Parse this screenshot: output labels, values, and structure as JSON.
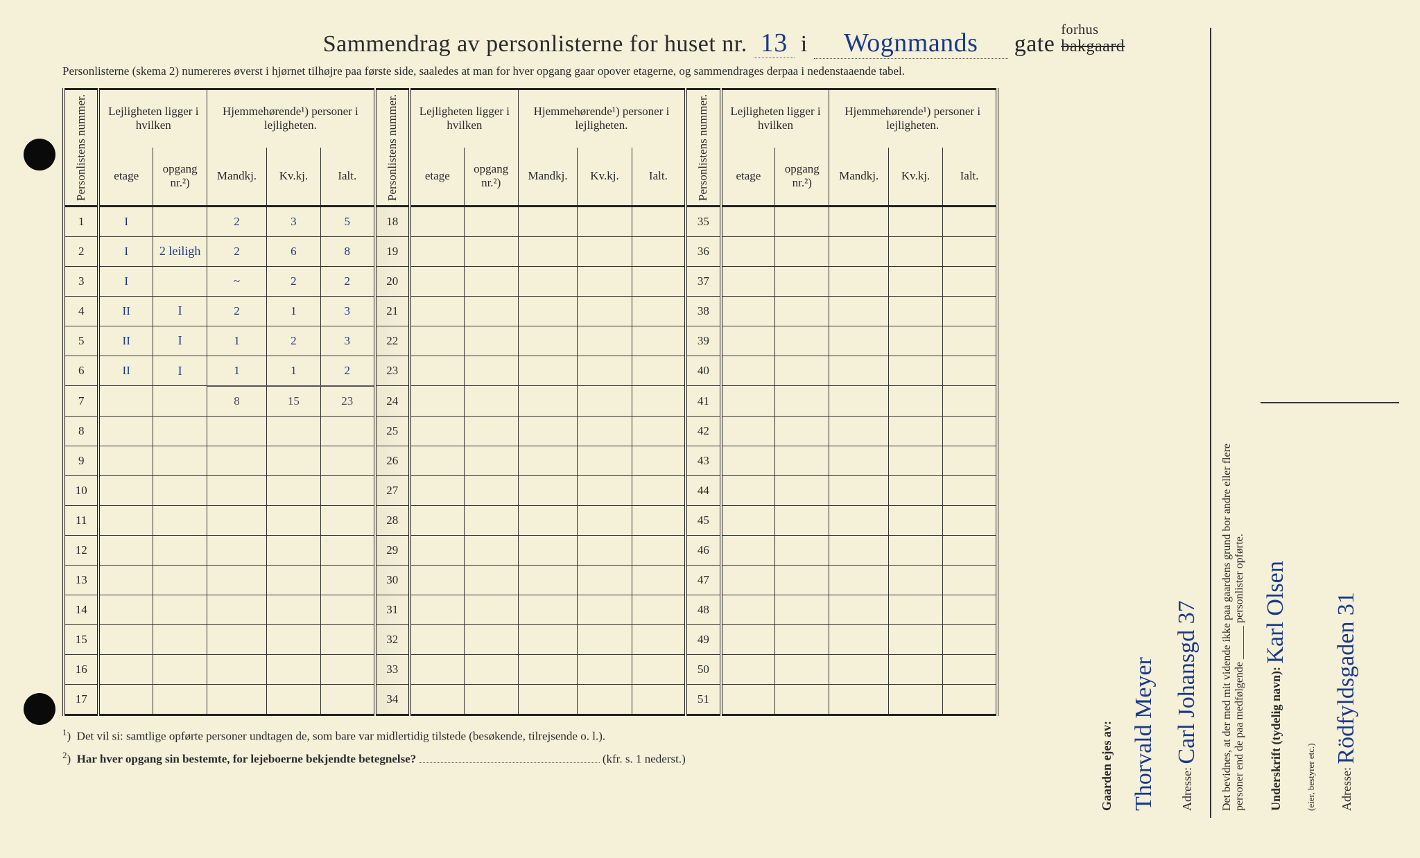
{
  "title": {
    "prefix": "Sammendrag av personlisterne for huset nr.",
    "house_nr": "13",
    "mid": "i",
    "street": "Wognmands",
    "suffix": "gate",
    "option_above": "forhus",
    "option_struck": "bakgaard"
  },
  "subtitle": "Personlisterne (skema 2) numereres øverst i hjørnet tilhøjre paa første side, saaledes at man for hver opgang gaar opover etagerne, og sammendrages derpaa i nedenstaaende tabel.",
  "columns": {
    "personlistens": "Personlistens nummer.",
    "lejlighet": "Lejligheten ligger i hvilken",
    "hjemme": "Hjemmehørende¹) personer i lejligheten.",
    "etage": "etage",
    "opgang": "opgang nr.²)",
    "mand": "Mandkj.",
    "kv": "Kv.kj.",
    "ialt": "Ialt."
  },
  "rows_a": [
    {
      "n": "1",
      "etage": "I",
      "opg": "",
      "m": "2",
      "k": "3",
      "i": "5"
    },
    {
      "n": "2",
      "etage": "I",
      "opg": "2 leiligh",
      "m": "2",
      "k": "6",
      "i": "8"
    },
    {
      "n": "3",
      "etage": "I",
      "opg": "",
      "m": "~",
      "k": "2",
      "i": "2"
    },
    {
      "n": "4",
      "etage": "II",
      "opg": "I",
      "m": "2",
      "k": "1",
      "i": "3"
    },
    {
      "n": "5",
      "etage": "II",
      "opg": "I",
      "m": "1",
      "k": "2",
      "i": "3"
    },
    {
      "n": "6",
      "etage": "II",
      "opg": "I",
      "m": "1",
      "k": "1",
      "i": "2"
    },
    {
      "n": "7",
      "etage": "",
      "opg": "",
      "m": "8",
      "k": "15",
      "i": "23"
    },
    {
      "n": "8"
    },
    {
      "n": "9"
    },
    {
      "n": "10"
    },
    {
      "n": "11"
    },
    {
      "n": "12"
    },
    {
      "n": "13"
    },
    {
      "n": "14"
    },
    {
      "n": "15"
    },
    {
      "n": "16"
    },
    {
      "n": "17"
    }
  ],
  "rows_b": [
    "18",
    "19",
    "20",
    "21",
    "22",
    "23",
    "24",
    "25",
    "26",
    "27",
    "28",
    "29",
    "30",
    "31",
    "32",
    "33",
    "34"
  ],
  "rows_c": [
    "35",
    "36",
    "37",
    "38",
    "39",
    "40",
    "41",
    "42",
    "43",
    "44",
    "45",
    "46",
    "47",
    "48",
    "49",
    "50",
    "51"
  ],
  "footnotes": {
    "f1": "Det vil si: samtlige opførte personer undtagen de, som bare var midlertidig tilstede (besøkende, tilrejsende o. l.).",
    "f2": "Har hver opgang sin bestemte, for lejeboerne bekjendte betegnelse?",
    "f2_ref": "(kfr. s. 1 nederst.)"
  },
  "right": {
    "owner_label": "Gaarden ejes av:",
    "owner_name": "Thorvald Meyer",
    "owner_addr_label": "Adresse:",
    "owner_addr": "Carl Johansgd 37",
    "attest": "Det bevidnes, at der med mit vidende ikke paa gaardens grund bor andre eller flere personer end de paa medfølgende ______ personlister opførte.",
    "sign_label": "Underskrift (tydelig navn):",
    "sign_name": "Karl Olsen",
    "sign_role": "(eier, bestyrer etc.)",
    "sign_addr_label": "Adresse:",
    "sign_addr": "Rödfyldsgaden 31"
  },
  "colors": {
    "paper": "#f5f0d8",
    "ink": "#2a2a2a",
    "blue_ink": "#1a3a8a"
  }
}
